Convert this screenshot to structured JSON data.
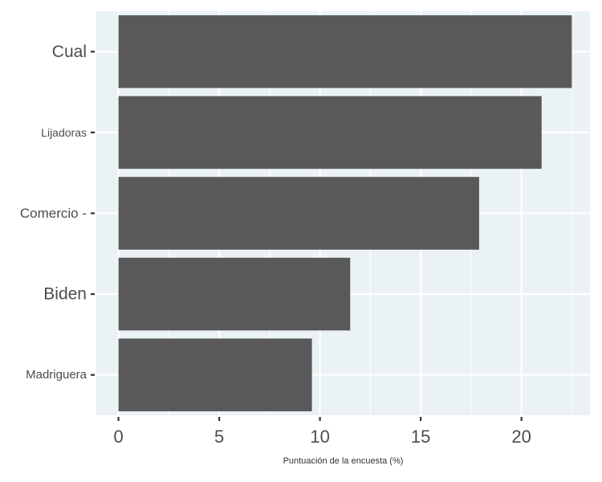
{
  "chart_data": {
    "type": "bar",
    "orientation": "horizontal",
    "categories": [
      "Cual",
      "Lijadoras",
      "Comercio -",
      "Biden",
      "Madriguera"
    ],
    "values": [
      22.5,
      21.0,
      17.9,
      11.5,
      9.6
    ],
    "xlabel": "Puntuación de la encuesta (%)",
    "ylabel": "",
    "xlim": [
      -1.1,
      23.4
    ],
    "x_ticks": [
      0,
      5,
      10,
      15,
      20
    ],
    "grid": true,
    "colors": {
      "bar": "#595959",
      "panel": "#eaf2f5",
      "grid": "#ffffff"
    }
  }
}
